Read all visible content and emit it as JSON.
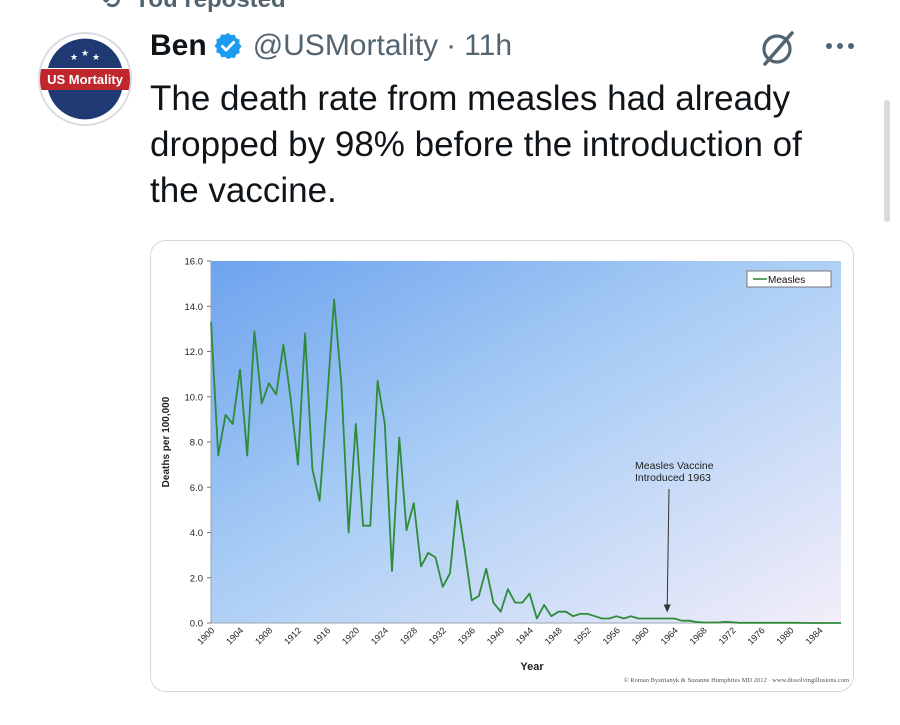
{
  "repost": {
    "label": "You reposted",
    "icon": "repost-icon"
  },
  "account": {
    "avatar_text": "US Mortality",
    "name": "Ben",
    "handle": "@USMortality",
    "separator": "·",
    "time": "11h",
    "verified": true
  },
  "actions": {
    "grok": "grok-icon",
    "more": "more-icon"
  },
  "tweet": {
    "text": "The death rate from measles had already dropped by 98% before the introduction of the vaccine."
  },
  "colors": {
    "accent": "#1d9bf0",
    "text": "#0f1419",
    "muted": "#536471",
    "series": "#2e8b3a",
    "avatar_red": "#c0272d",
    "avatar_blue": "#1f3a73"
  },
  "chart_data": {
    "type": "line",
    "title": "",
    "xlabel": "Year",
    "ylabel": "Deaths per 100,000",
    "ylim": [
      0,
      16
    ],
    "xlim": [
      1900,
      1987
    ],
    "y_ticks": [
      "0.0",
      "2.0",
      "4.0",
      "6.0",
      "8.0",
      "10.0",
      "12.0",
      "14.0",
      "16.0"
    ],
    "x_ticks": [
      "1900",
      "1904",
      "1908",
      "1912",
      "1916",
      "1920",
      "1924",
      "1928",
      "1932",
      "1936",
      "1940",
      "1944",
      "1948",
      "1952",
      "1956",
      "1960",
      "1964",
      "1968",
      "1972",
      "1976",
      "1980",
      "1984"
    ],
    "legend": {
      "position": "top-right",
      "entries": [
        "Measles"
      ]
    },
    "annotation": {
      "lines": [
        "Measles Vaccine",
        "Introduced 1963"
      ],
      "x": 1963,
      "y": 0.2
    },
    "credit": "© Roman Bystrianyk & Suzanne Humphries MD 2012 · www.dissolvingillusions.com",
    "series": [
      {
        "name": "Measles",
        "x": [
          1900,
          1901,
          1902,
          1903,
          1904,
          1905,
          1906,
          1907,
          1908,
          1909,
          1910,
          1911,
          1912,
          1913,
          1914,
          1915,
          1916,
          1917,
          1918,
          1919,
          1920,
          1921,
          1922,
          1923,
          1924,
          1925,
          1926,
          1927,
          1928,
          1929,
          1930,
          1931,
          1932,
          1933,
          1934,
          1935,
          1936,
          1937,
          1938,
          1939,
          1940,
          1941,
          1942,
          1943,
          1944,
          1945,
          1946,
          1947,
          1948,
          1949,
          1950,
          1951,
          1952,
          1953,
          1954,
          1955,
          1956,
          1957,
          1958,
          1959,
          1960,
          1961,
          1962,
          1963,
          1964,
          1965,
          1966,
          1967,
          1968,
          1969,
          1970,
          1971,
          1972,
          1973,
          1974,
          1975,
          1976,
          1977,
          1978,
          1979,
          1980,
          1981,
          1982,
          1983,
          1984,
          1985,
          1986,
          1987
        ],
        "values": [
          13.3,
          7.4,
          9.2,
          8.8,
          11.2,
          7.4,
          12.9,
          9.7,
          10.6,
          10.1,
          12.3,
          9.9,
          7.0,
          12.8,
          6.8,
          5.4,
          9.7,
          14.3,
          10.6,
          4.0,
          8.8,
          4.3,
          4.3,
          10.7,
          8.8,
          2.3,
          8.2,
          4.1,
          5.3,
          2.5,
          3.1,
          2.9,
          1.6,
          2.2,
          5.4,
          3.3,
          1.0,
          1.2,
          2.4,
          0.9,
          0.5,
          1.5,
          0.9,
          0.9,
          1.3,
          0.2,
          0.8,
          0.3,
          0.5,
          0.5,
          0.3,
          0.4,
          0.4,
          0.3,
          0.2,
          0.2,
          0.3,
          0.2,
          0.3,
          0.2,
          0.2,
          0.2,
          0.2,
          0.2,
          0.2,
          0.1,
          0.1,
          0.05,
          0.02,
          0.02,
          0.02,
          0.05,
          0.03,
          0.01,
          0.01,
          0.01,
          0.01,
          0.01,
          0.01,
          0.01,
          0.01,
          0.01,
          0.0,
          0.0,
          0.0,
          0.0,
          0.0,
          0.0
        ]
      }
    ]
  }
}
